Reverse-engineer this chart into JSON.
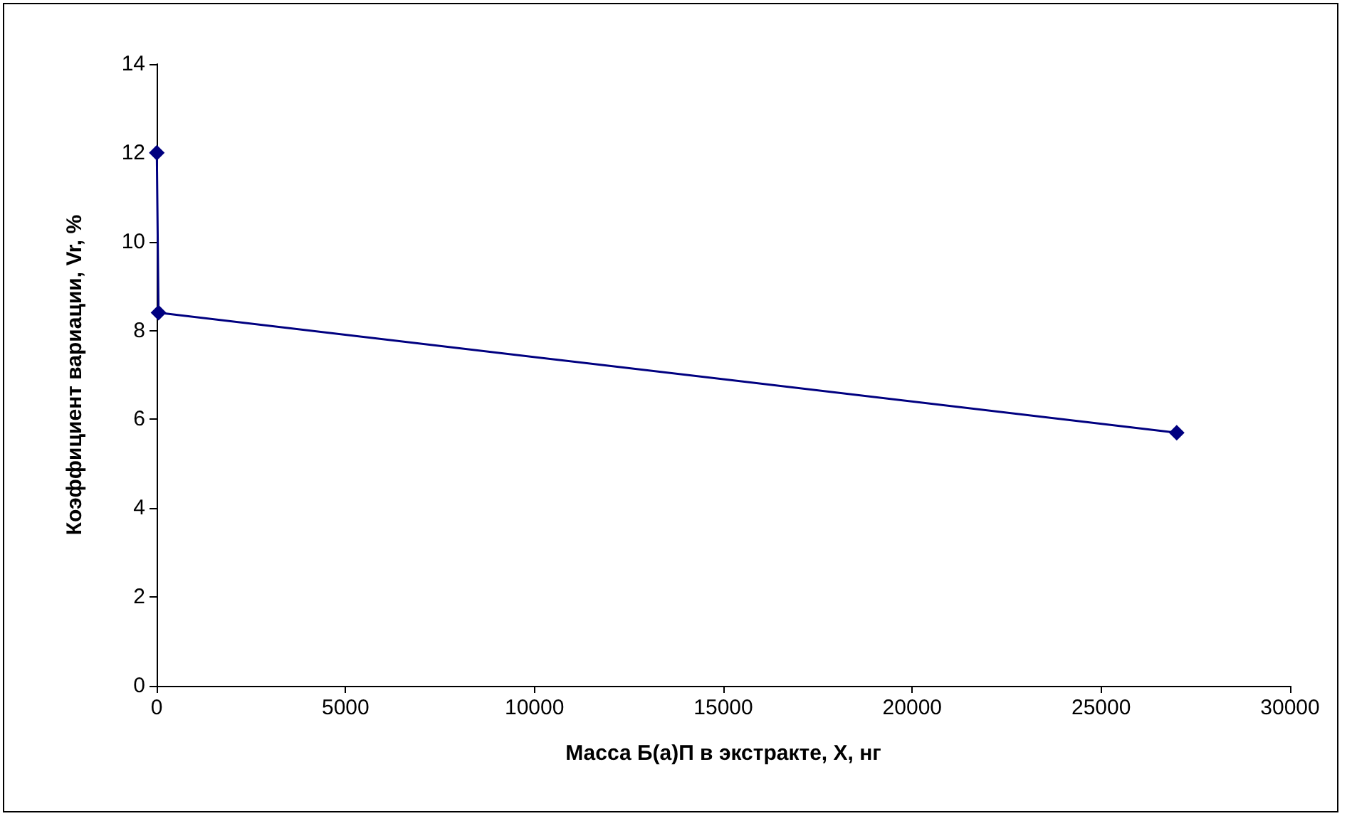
{
  "chart_data": {
    "type": "line",
    "xlabel": "Масса Б(а)П в экстракте, Х, нг",
    "ylabel": "Коэффициент вариации, Vr, %",
    "x": [
      5,
      50,
      27000
    ],
    "series": [
      {
        "color": "#000080",
        "values": [
          12,
          8.4,
          5.7
        ]
      }
    ],
    "xlim": [
      0,
      30000
    ],
    "xticks": [
      0,
      5000,
      10000,
      15000,
      20000,
      25000,
      30000
    ],
    "ylim": [
      0,
      14
    ],
    "yticks": [
      0,
      2,
      4,
      6,
      8,
      10,
      12,
      14
    ],
    "grid": false,
    "marker": "diamond",
    "line_style": "solid"
  }
}
